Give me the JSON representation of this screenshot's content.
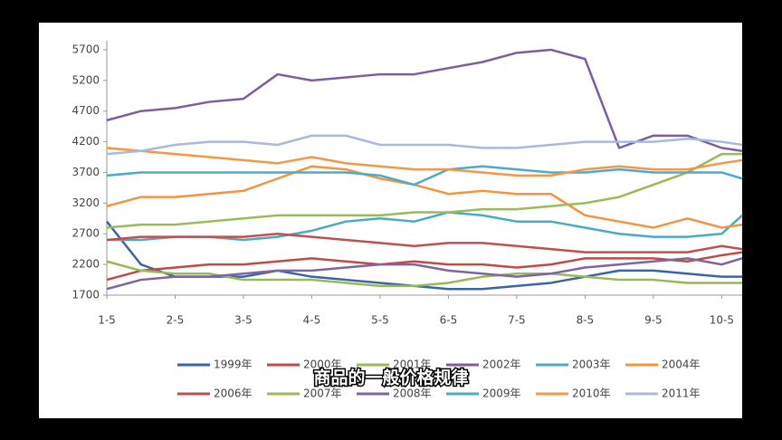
{
  "caption": "商品的一般价格规律",
  "chart_data": {
    "type": "line",
    "x": [
      1,
      1.5,
      2,
      2.5,
      3,
      3.5,
      4,
      4.5,
      5,
      5.5,
      6,
      6.5,
      7,
      7.5,
      8,
      8.5,
      9,
      9.5,
      10,
      10.3
    ],
    "xlim": [
      1,
      10.3
    ],
    "xticks": [
      {
        "value": 1,
        "label": "1-5"
      },
      {
        "value": 2,
        "label": "2-5"
      },
      {
        "value": 3,
        "label": "3-5"
      },
      {
        "value": 4,
        "label": "4-5"
      },
      {
        "value": 5,
        "label": "5-5"
      },
      {
        "value": 6,
        "label": "6-5"
      },
      {
        "value": 7,
        "label": "7-5"
      },
      {
        "value": 8,
        "label": "8-5"
      },
      {
        "value": 9,
        "label": "9-5"
      },
      {
        "value": 10,
        "label": "10-5"
      }
    ],
    "ylim": [
      1700,
      5850
    ],
    "yticks": [
      1700,
      2200,
      2700,
      3200,
      3700,
      4200,
      4700,
      5200,
      5700
    ],
    "series": [
      {
        "name": "1999年",
        "color": "#3a64a8",
        "values": [
          2900,
          2200,
          2000,
          2000,
          2000,
          2100,
          2000,
          1950,
          1900,
          1850,
          1800,
          1800,
          1850,
          1900,
          2000,
          2100,
          2100,
          2050,
          2000,
          2000
        ]
      },
      {
        "name": "2000年",
        "color": "#be4b48",
        "values": [
          1950,
          2100,
          2150,
          2200,
          2200,
          2250,
          2300,
          2250,
          2200,
          2250,
          2200,
          2200,
          2150,
          2200,
          2300,
          2300,
          2300,
          2250,
          2350,
          2400
        ]
      },
      {
        "name": "2001年",
        "color": "#98b954",
        "values": [
          2250,
          2100,
          2050,
          2050,
          1950,
          1950,
          1950,
          1900,
          1850,
          1850,
          1900,
          2000,
          2050,
          2050,
          2000,
          1950,
          1950,
          1900,
          1900,
          1900
        ]
      },
      {
        "name": "2002年",
        "color": "#7d5fa0",
        "values": [
          4550,
          4700,
          4750,
          4850,
          4900,
          5300,
          5200,
          5250,
          5300,
          5300,
          5400,
          5500,
          5650,
          5700,
          5550,
          4100,
          4300,
          4300,
          4100,
          4050
        ]
      },
      {
        "name": "2003年",
        "color": "#4aaac5",
        "values": [
          2600,
          2600,
          2650,
          2650,
          2600,
          2650,
          2750,
          2900,
          2950,
          2900,
          3050,
          3000,
          2900,
          2900,
          2800,
          2700,
          2650,
          2650,
          2700,
          3000
        ]
      },
      {
        "name": "2004年",
        "color": "#f59440",
        "values": [
          3150,
          3300,
          3300,
          3350,
          3400,
          3600,
          3800,
          3750,
          3600,
          3500,
          3350,
          3400,
          3350,
          3350,
          3000,
          2900,
          2800,
          2950,
          2800,
          2850
        ]
      },
      {
        "name": "2006年",
        "color": "#c0504d",
        "values": [
          2600,
          2650,
          2650,
          2650,
          2650,
          2700,
          2650,
          2600,
          2550,
          2500,
          2550,
          2550,
          2500,
          2450,
          2400,
          2400,
          2400,
          2400,
          2500,
          2450
        ]
      },
      {
        "name": "2007年",
        "color": "#9bbb59",
        "values": [
          2800,
          2850,
          2850,
          2900,
          2950,
          3000,
          3000,
          3000,
          3000,
          3050,
          3050,
          3100,
          3100,
          3150,
          3200,
          3300,
          3500,
          3700,
          4000,
          4000
        ]
      },
      {
        "name": "2008年",
        "color": "#8064a2",
        "values": [
          1800,
          1950,
          2000,
          2000,
          2050,
          2100,
          2100,
          2150,
          2200,
          2200,
          2100,
          2050,
          2000,
          2050,
          2150,
          2200,
          2250,
          2300,
          2200,
          2300
        ]
      },
      {
        "name": "2009年",
        "color": "#4bacc6",
        "values": [
          3650,
          3700,
          3700,
          3700,
          3700,
          3700,
          3700,
          3700,
          3650,
          3500,
          3750,
          3800,
          3750,
          3700,
          3700,
          3750,
          3700,
          3700,
          3700,
          3600
        ]
      },
      {
        "name": "2010年",
        "color": "#f79646",
        "values": [
          4100,
          4050,
          4000,
          3950,
          3900,
          3850,
          3950,
          3850,
          3800,
          3750,
          3750,
          3700,
          3650,
          3650,
          3750,
          3800,
          3750,
          3750,
          3850,
          3900
        ]
      },
      {
        "name": "2011年",
        "color": "#aab9dc",
        "values": [
          4000,
          4050,
          4150,
          4200,
          4200,
          4150,
          4300,
          4300,
          4150,
          4150,
          4150,
          4100,
          4100,
          4150,
          4200,
          4200,
          4200,
          4250,
          4200,
          4150
        ]
      }
    ]
  }
}
